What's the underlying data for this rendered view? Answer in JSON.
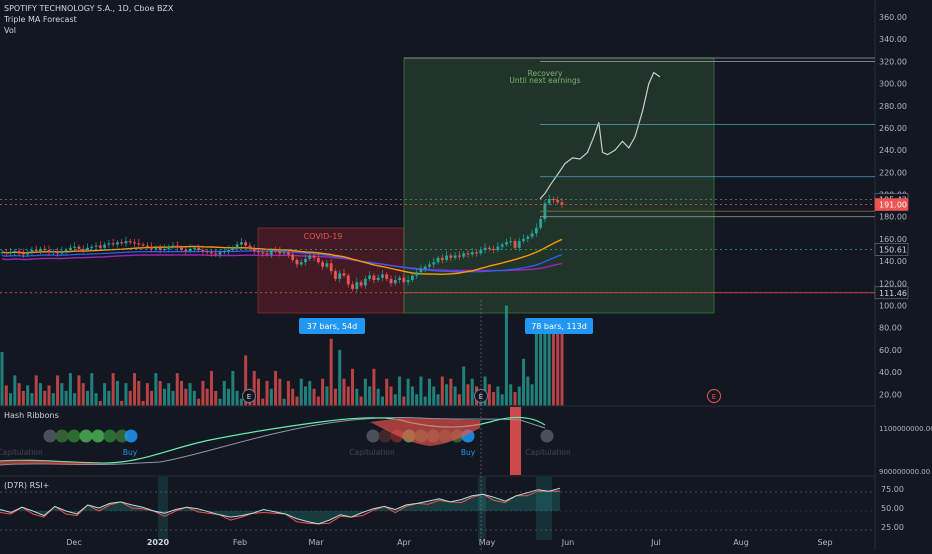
{
  "header": {
    "symbol_line": "SPOTIFY TECHNOLOGY S.A., 1D, Cboe BZX",
    "indicator_1": "Triple MA Forecast",
    "indicator_2": "Vol"
  },
  "panes": {
    "hash_ribbons": {
      "title": "Hash Ribbons",
      "signals": [
        "Capitulation",
        "Buy",
        "Capitulation",
        "Buy",
        "Capitulation"
      ],
      "ticks": [
        "1100000000.00",
        "900000000.00"
      ]
    },
    "rsi": {
      "title": "(D7R) RSI+",
      "ticks": [
        "75.00",
        "50.00",
        "25.00"
      ]
    }
  },
  "annotations": {
    "covid_label": "COVID-19",
    "recovery_label_1": "Recovery",
    "recovery_label_2": "Until next earnings",
    "bars_label_1": "37 bars, 54d",
    "bars_label_2": "78 bars, 113d",
    "earnings_marker": "E"
  },
  "price_badges": [
    {
      "label": "195.42",
      "price": 195.42,
      "bg": "#131722",
      "fg": "#d1d4dc",
      "border": "#787b86"
    },
    {
      "label": "191.00",
      "price": 191.0,
      "bg": "#ef5350",
      "fg": "#ffffff",
      "border": "#ef5350"
    },
    {
      "label": "150.61",
      "price": 150.61,
      "bg": "#131722",
      "fg": "#d1d4dc",
      "border": "#787b86"
    },
    {
      "label": "111.46",
      "price": 111.46,
      "bg": "#131722",
      "fg": "#d1d4dc",
      "border": "#787b86"
    }
  ],
  "colors": {
    "background": "#131722",
    "up": "#26a69a",
    "down": "#ef5350",
    "covid_box": "#7a1f27",
    "recovery_box": "#3c6b3a",
    "orange_ma": "#ff9800",
    "blue_ma": "#2962ff",
    "purple_ma": "#9c27b0",
    "badge_blue": "#2196f3"
  },
  "chart_data": {
    "type": "candlestick",
    "title": "SPOTIFY TECHNOLOGY S.A., 1D, Cboe BZX",
    "y_ticks": [
      360,
      340,
      320,
      300,
      280,
      260,
      240,
      220,
      200,
      180,
      160,
      140,
      120,
      100,
      80,
      60,
      40,
      20
    ],
    "y_tick_labels": [
      "360.00",
      "340.00",
      "320.00",
      "300.00",
      "280.00",
      "260.00",
      "240.00",
      "220.00",
      "200.00",
      "180.00",
      "160.00",
      "140.00",
      "120.00",
      "100.00",
      "80.00",
      "60.00",
      "40.00",
      "20.00"
    ],
    "ylim": [
      10,
      370
    ],
    "x_ticks": [
      "Dec",
      "2020",
      "Feb",
      "Mar",
      "Apr",
      "May",
      "Jun",
      "Jul",
      "Aug",
      "Sep"
    ],
    "close_series": [
      148,
      147,
      148,
      149,
      147,
      146,
      148,
      150,
      149,
      151,
      150,
      148,
      149,
      147,
      149,
      150,
      152,
      153,
      151,
      150,
      152,
      153,
      154,
      152,
      155,
      156,
      155,
      157,
      156,
      158,
      157,
      156,
      155,
      154,
      153,
      151,
      152,
      150,
      151,
      153,
      154,
      152,
      150,
      149,
      151,
      152,
      150,
      149,
      148,
      147,
      146,
      148,
      149,
      150,
      152,
      155,
      157,
      154,
      151,
      149,
      148,
      147,
      146,
      150,
      149,
      147,
      148,
      146,
      141,
      137,
      139,
      142,
      145,
      143,
      139,
      135,
      138,
      131,
      124,
      129,
      127,
      119,
      115,
      121,
      118,
      124,
      127,
      123,
      125,
      128,
      124,
      120,
      123,
      125,
      121,
      123,
      127,
      130,
      133,
      135,
      137,
      139,
      143,
      141,
      145,
      143,
      145,
      144,
      147,
      146,
      148,
      147,
      150,
      152,
      151,
      150,
      153,
      155,
      157,
      158,
      152,
      158,
      160,
      162,
      165,
      170,
      178,
      192,
      196,
      195,
      193,
      191
    ],
    "forecast_path": [
      [
        1.0,
        196
      ],
      [
        1.2,
        201
      ],
      [
        1.45,
        210
      ],
      [
        1.7,
        218
      ],
      [
        2.0,
        228
      ],
      [
        2.3,
        233
      ],
      [
        2.6,
        232
      ],
      [
        2.9,
        238
      ],
      [
        3.15,
        252
      ],
      [
        3.35,
        265
      ],
      [
        3.5,
        238
      ],
      [
        3.7,
        236
      ],
      [
        4.0,
        240
      ],
      [
        4.3,
        248
      ],
      [
        4.55,
        242
      ],
      [
        4.8,
        252
      ],
      [
        5.1,
        275
      ],
      [
        5.35,
        300
      ],
      [
        5.55,
        310
      ],
      [
        5.8,
        306
      ]
    ],
    "forecast_levels": [
      320,
      263,
      216,
      185,
      180,
      111.46
    ],
    "volume_label_ticks": [
      "100.00",
      "80.00",
      "60.00",
      "40.00",
      "20.00"
    ]
  }
}
